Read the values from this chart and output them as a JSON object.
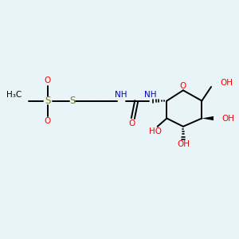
{
  "bg_color": "#e8f4f8",
  "line_color": "#000000",
  "red_color": "#ff0000",
  "blue_color": "#0000cc",
  "sulfur_color": "#808000",
  "figsize": [
    3.0,
    3.0
  ],
  "dpi": 100,
  "xlim": [
    0,
    10
  ],
  "ylim": [
    0,
    10
  ]
}
